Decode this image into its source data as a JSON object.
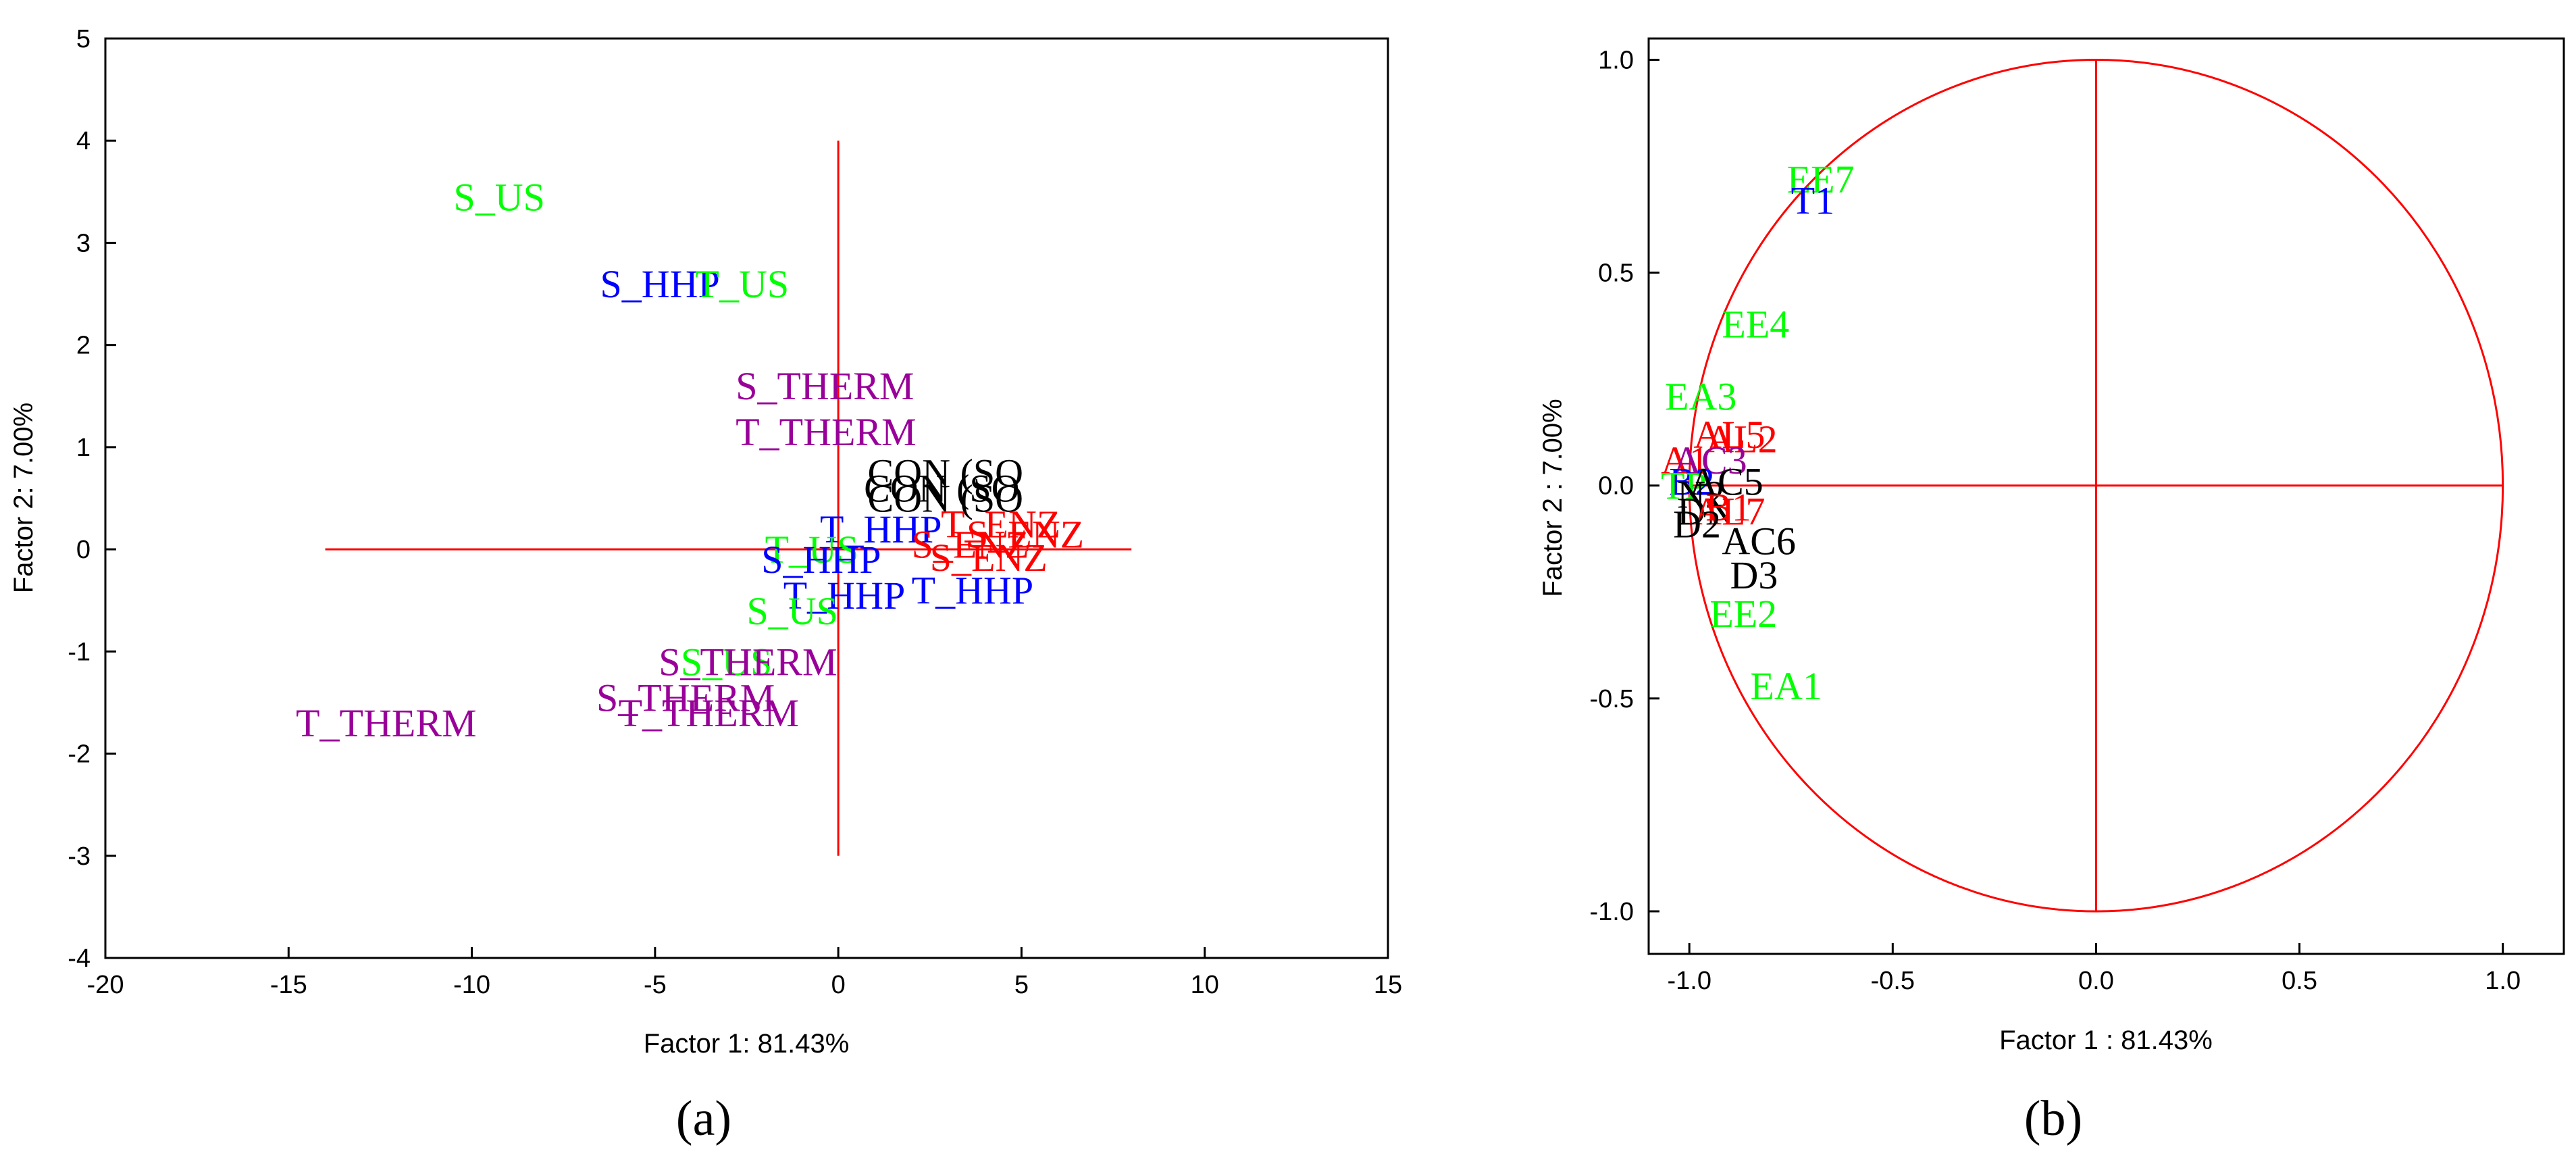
{
  "colors": {
    "black": "#000000",
    "red": "#ff0000",
    "blue": "#0000ff",
    "green": "#00ff00",
    "purple": "#990099",
    "axis": "#ff0000"
  },
  "chart_data": [
    {
      "id": "a",
      "type": "scatter",
      "caption": "(a)",
      "xlabel": "Factor 1: 81.43%",
      "ylabel": "Factor 2:  7.00%",
      "xlim": [
        -20,
        15
      ],
      "ylim": [
        -4,
        5
      ],
      "xticks": [
        -20,
        -15,
        -10,
        -5,
        0,
        5,
        10,
        15
      ],
      "yticks": [
        -4,
        -3,
        -2,
        -1,
        0,
        1,
        2,
        3,
        4,
        5
      ],
      "xtick_labels": [
        "-20",
        "-15",
        "-10",
        "-5",
        "0",
        "5",
        "10",
        "15"
      ],
      "ytick_labels": [
        "-4",
        "-3",
        "-2",
        "-1",
        "0",
        "1",
        "2",
        "3",
        "4",
        "5"
      ],
      "reference_lines": [
        {
          "x1": -14,
          "y1": 0,
          "x2": 8,
          "y2": 0
        },
        {
          "x1": 0,
          "y1": -3,
          "x2": 0,
          "y2": 4
        }
      ],
      "points": [
        {
          "label": "S_US",
          "x": -10.5,
          "y": 3.45,
          "color": "green"
        },
        {
          "label": "S_HHP",
          "x": -6.5,
          "y": 2.6,
          "color": "blue"
        },
        {
          "label": "T_US",
          "x": -3.9,
          "y": 2.6,
          "color": "green"
        },
        {
          "label": "S_THERM",
          "x": -2.8,
          "y": 1.6,
          "color": "purple"
        },
        {
          "label": "T_THERM",
          "x": -2.8,
          "y": 1.15,
          "color": "purple"
        },
        {
          "label": "CON (SO",
          "x": 0.8,
          "y": 0.75,
          "color": "black"
        },
        {
          "label": "CON (SO",
          "x": 0.7,
          "y": 0.6,
          "color": "black"
        },
        {
          "label": "CON (SO",
          "x": 0.8,
          "y": 0.5,
          "color": "black"
        },
        {
          "label": "T_HHP",
          "x": -0.5,
          "y": 0.2,
          "color": "blue"
        },
        {
          "label": "T_ENZ",
          "x": 2.8,
          "y": 0.25,
          "color": "red"
        },
        {
          "label": "S_ENZ",
          "x": 3.5,
          "y": 0.15,
          "color": "red"
        },
        {
          "label": "S_ENZ",
          "x": 2.0,
          "y": 0.05,
          "color": "red"
        },
        {
          "label": "S_ENZ",
          "x": 2.5,
          "y": -0.08,
          "color": "red"
        },
        {
          "label": "T_US",
          "x": -2.0,
          "y": 0.0,
          "color": "green"
        },
        {
          "label": "S_HHP",
          "x": -2.1,
          "y": -0.1,
          "color": "blue"
        },
        {
          "label": "T_HHP",
          "x": -1.5,
          "y": -0.45,
          "color": "blue"
        },
        {
          "label": "T_HHP",
          "x": 2.0,
          "y": -0.4,
          "color": "blue"
        },
        {
          "label": "S_US",
          "x": -2.5,
          "y": -0.6,
          "color": "green"
        },
        {
          "label": "S_US",
          "x": -4.3,
          "y": -1.1,
          "color": "green"
        },
        {
          "label": "S_THERM",
          "x": -4.9,
          "y": -1.1,
          "color": "purple"
        },
        {
          "label": "S_THERM",
          "x": -6.6,
          "y": -1.45,
          "color": "purple"
        },
        {
          "label": "T_THERM",
          "x": -6.0,
          "y": -1.6,
          "color": "purple"
        },
        {
          "label": "T_THERM",
          "x": -14.8,
          "y": -1.7,
          "color": "purple"
        }
      ]
    },
    {
      "id": "b",
      "type": "scatter",
      "caption": "(b)",
      "xlabel": "Factor 1 : 81.43%",
      "ylabel": "Factor 2 :  7.00%",
      "xlim": [
        -1.1,
        1.15
      ],
      "ylim": [
        -1.1,
        1.05
      ],
      "xticks": [
        -1.0,
        -0.5,
        0.0,
        0.5,
        1.0
      ],
      "yticks": [
        -1.0,
        -0.5,
        0.0,
        0.5,
        1.0
      ],
      "xtick_labels": [
        "-1.0",
        "-0.5",
        "0.0",
        "0.5",
        "1.0"
      ],
      "ytick_labels": [
        "-1.0",
        "-0.5",
        "0.0",
        "0.5",
        "1.0"
      ],
      "circle_radius": 1.0,
      "reference_lines": [
        {
          "x1": -1,
          "y1": 0,
          "x2": 1,
          "y2": 0
        },
        {
          "x1": 0,
          "y1": -1,
          "x2": 0,
          "y2": 1
        }
      ],
      "points": [
        {
          "label": "EE7",
          "x": -0.76,
          "y": 0.72,
          "color": "green"
        },
        {
          "label": "T1",
          "x": -0.75,
          "y": 0.67,
          "color": "blue"
        },
        {
          "label": "EE4",
          "x": -0.92,
          "y": 0.38,
          "color": "green"
        },
        {
          "label": "EA3",
          "x": -1.06,
          "y": 0.21,
          "color": "green"
        },
        {
          "label": "AL5",
          "x": -0.99,
          "y": 0.12,
          "color": "red"
        },
        {
          "label": "AL2",
          "x": -0.96,
          "y": 0.11,
          "color": "red"
        },
        {
          "label": "A1",
          "x": -1.07,
          "y": 0.06,
          "color": "red"
        },
        {
          "label": "AC3",
          "x": -1.04,
          "y": 0.06,
          "color": "purple"
        },
        {
          "label": "B2",
          "x": -1.05,
          "y": 0.01,
          "color": "blue"
        },
        {
          "label": "TP",
          "x": -1.07,
          "y": 0.0,
          "color": "green"
        },
        {
          "label": "AC5",
          "x": -1.0,
          "y": 0.01,
          "color": "black"
        },
        {
          "label": "N2",
          "x": -1.03,
          "y": -0.02,
          "color": "black"
        },
        {
          "label": "DN",
          "x": -1.03,
          "y": -0.06,
          "color": "black"
        },
        {
          "label": "AL7",
          "x": -0.99,
          "y": -0.06,
          "color": "red"
        },
        {
          "label": "B1",
          "x": -0.96,
          "y": -0.05,
          "color": "red"
        },
        {
          "label": "D2",
          "x": -1.04,
          "y": -0.09,
          "color": "black"
        },
        {
          "label": "AC6",
          "x": -0.92,
          "y": -0.13,
          "color": "black"
        },
        {
          "label": "D3",
          "x": -0.9,
          "y": -0.21,
          "color": "black"
        },
        {
          "label": "EE2",
          "x": -0.95,
          "y": -0.3,
          "color": "green"
        },
        {
          "label": "EA1",
          "x": -0.85,
          "y": -0.47,
          "color": "green"
        }
      ]
    }
  ]
}
